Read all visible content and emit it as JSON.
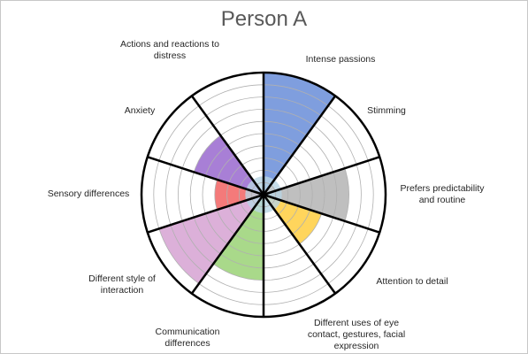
{
  "chart_data": {
    "type": "polar-area",
    "title": "Person A",
    "rmax": 10,
    "rings": 10,
    "categories": [
      "Intense passions",
      "Stimming",
      "Prefers predictability and routine",
      "Attention to detail",
      "Different uses of eye contact, gestures, facial expression",
      "Communication differences",
      "Different style of interaction",
      "Sensory differences",
      "Anxiety",
      "Actions and reactions to distress"
    ],
    "values": [
      10,
      1,
      7,
      5,
      0,
      7,
      9,
      4,
      6,
      0
    ],
    "colors": [
      "#7f9ede",
      "#f4a77a",
      "#bfbfbf",
      "#ffd55c",
      "#8fb8d6",
      "#a9d98a",
      "#dcb0d9",
      "#f47a7a",
      "#a87fd6",
      "#d9d9d9"
    ],
    "base_value": 1.5,
    "base_color": "#b8d4e3",
    "grid": true
  }
}
